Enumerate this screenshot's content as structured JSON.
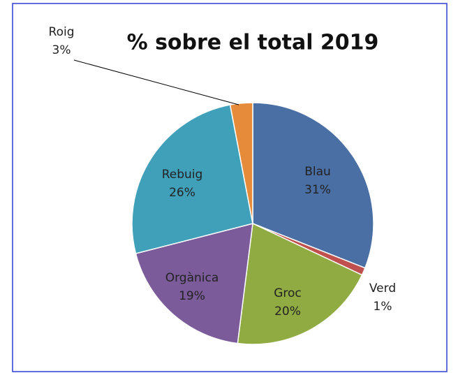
{
  "chart_data": {
    "type": "pie",
    "title": "% sobre el total 2019",
    "categories": [
      "Blau",
      "Verd",
      "Groc",
      "Orgànica",
      "Rebuig",
      "Roig"
    ],
    "values": [
      31,
      1,
      20,
      19,
      26,
      3
    ],
    "value_labels": [
      "31%",
      "1%",
      "20%",
      "19%",
      "26%",
      "3%"
    ],
    "colors": [
      "#4a6fa5",
      "#c0504d",
      "#8fab42",
      "#7b5b9a",
      "#40a0ba",
      "#e58b3a"
    ]
  }
}
